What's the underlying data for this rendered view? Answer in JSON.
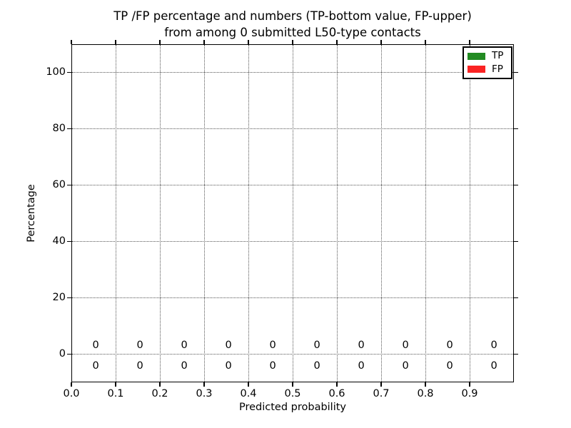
{
  "chart_data": {
    "type": "bar",
    "title_line1": "TP /FP percentage and numbers (TP-bottom value, FP-upper)",
    "title_line2": "from among 0 submitted L50-type contacts",
    "xlabel": "Predicted probability",
    "ylabel": "Percentage",
    "xlim": [
      0.0,
      1.0
    ],
    "ylim": [
      -10,
      110
    ],
    "xticks": [
      {
        "value": 0.0,
        "label": "0.0"
      },
      {
        "value": 0.1,
        "label": "0.1"
      },
      {
        "value": 0.2,
        "label": "0.2"
      },
      {
        "value": 0.3,
        "label": "0.3"
      },
      {
        "value": 0.4,
        "label": "0.4"
      },
      {
        "value": 0.5,
        "label": "0.5"
      },
      {
        "value": 0.6,
        "label": "0.6"
      },
      {
        "value": 0.7,
        "label": "0.7"
      },
      {
        "value": 0.8,
        "label": "0.8"
      },
      {
        "value": 0.9,
        "label": "0.9"
      }
    ],
    "yticks": [
      {
        "value": 0,
        "label": "0"
      },
      {
        "value": 20,
        "label": "20"
      },
      {
        "value": 40,
        "label": "40"
      },
      {
        "value": 60,
        "label": "60"
      },
      {
        "value": 80,
        "label": "80"
      },
      {
        "value": 100,
        "label": "100"
      }
    ],
    "grid": {
      "visible": true,
      "style": "dotted"
    },
    "bar_centers_x": [
      0.055,
      0.155,
      0.255,
      0.355,
      0.455,
      0.555,
      0.655,
      0.755,
      0.855,
      0.955
    ],
    "series": [
      {
        "name": "TP",
        "color": "#228b22",
        "values": [
          0,
          0,
          0,
          0,
          0,
          0,
          0,
          0,
          0,
          0
        ]
      },
      {
        "name": "FP",
        "color": "#fa2323",
        "values": [
          0,
          0,
          0,
          0,
          0,
          0,
          0,
          0,
          0,
          0
        ]
      }
    ],
    "annotations": {
      "upper_row_series": "FP",
      "lower_row_series": "TP",
      "upper_values": [
        "0",
        "0",
        "0",
        "0",
        "0",
        "0",
        "0",
        "0",
        "0",
        "0"
      ],
      "lower_values": [
        "0",
        "0",
        "0",
        "0",
        "0",
        "0",
        "0",
        "0",
        "0",
        "0"
      ]
    },
    "legend": {
      "position": "upper right",
      "entries": [
        {
          "label": "TP",
          "color": "#228b22"
        },
        {
          "label": "FP",
          "color": "#fa2323"
        }
      ]
    },
    "colors": {
      "background": "#ffffff",
      "text": "#000000",
      "spine": "#000000",
      "grid": "#555555"
    }
  }
}
